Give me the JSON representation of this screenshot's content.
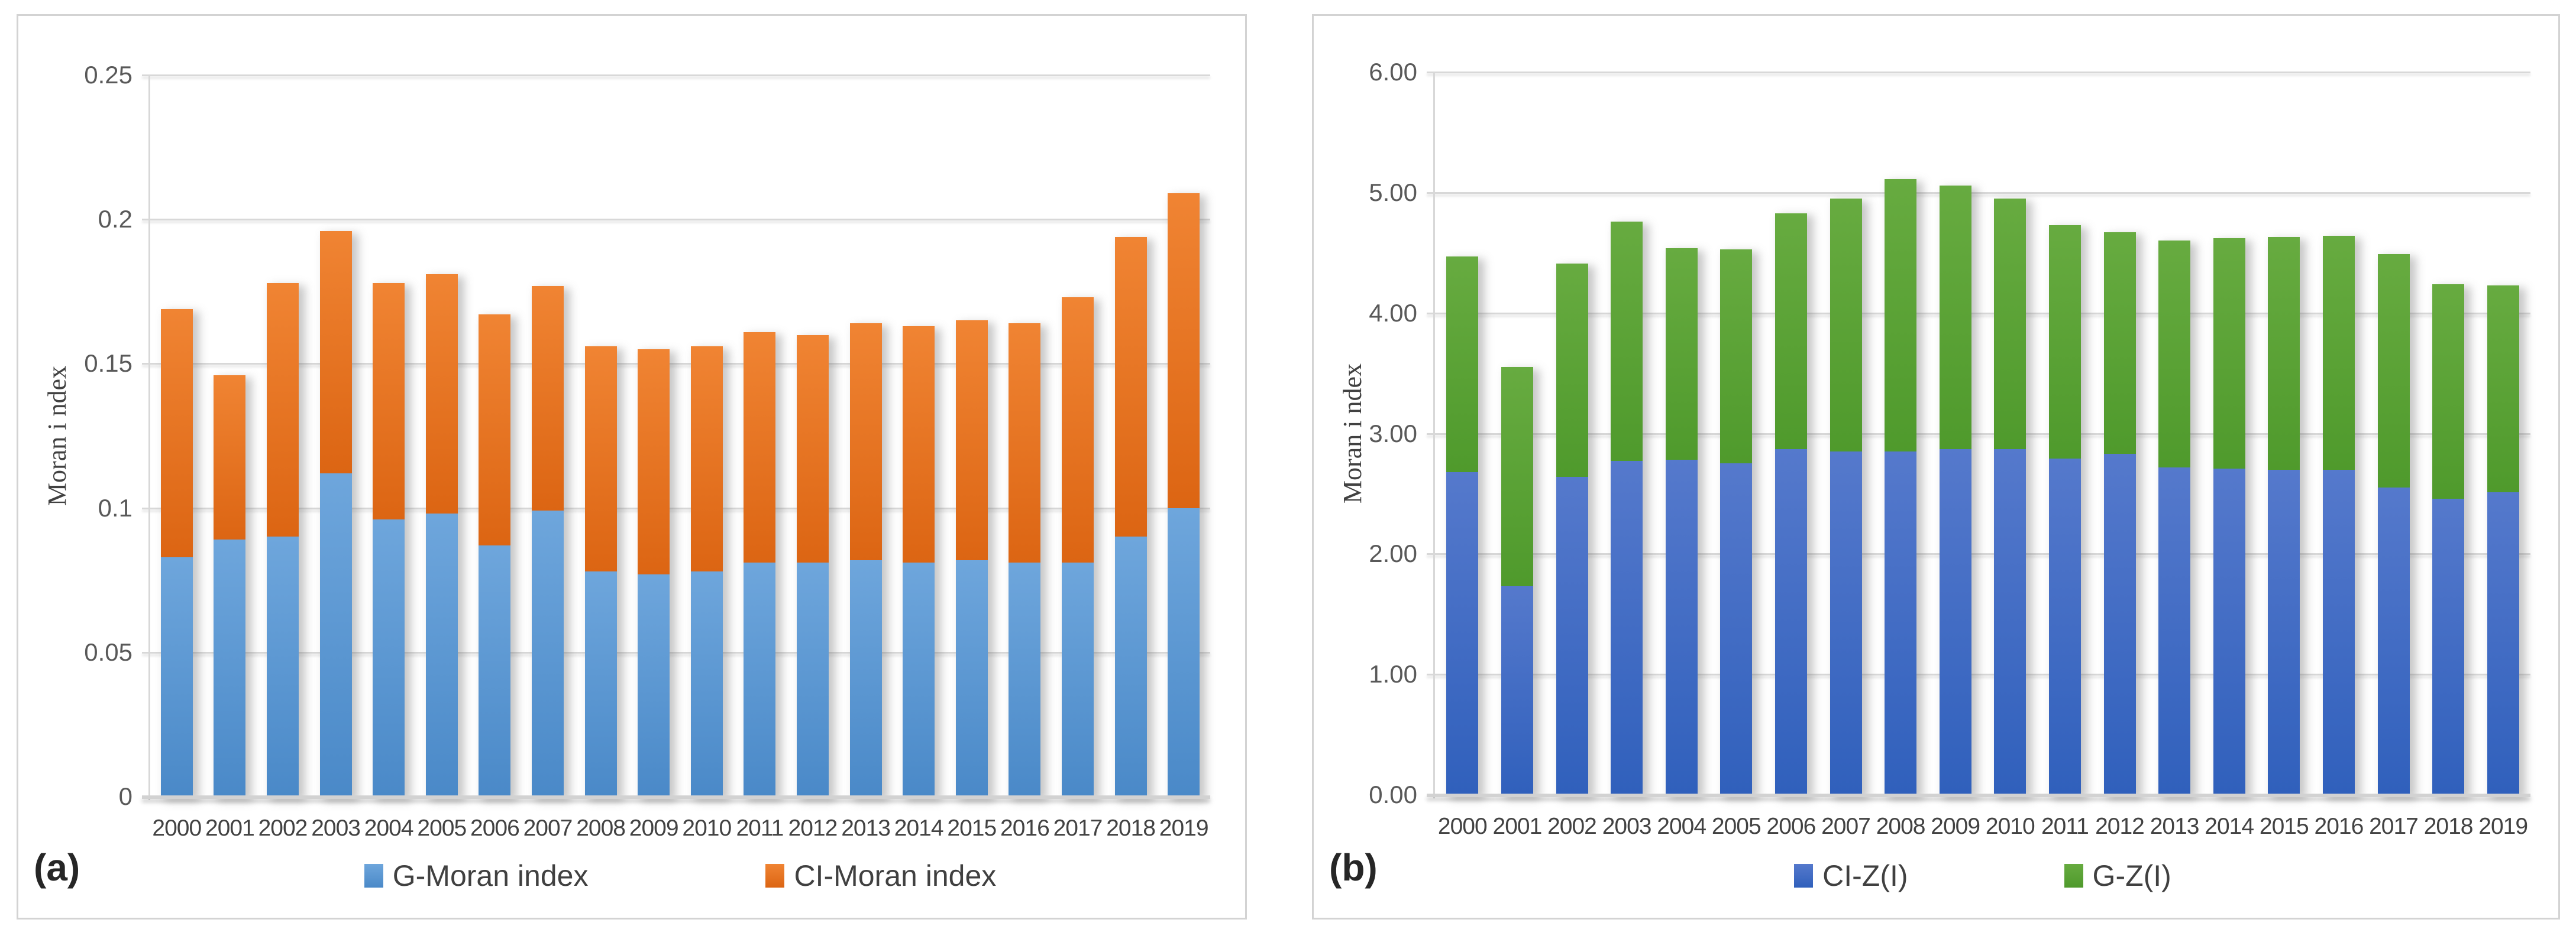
{
  "figure": {
    "background": "#ffffff",
    "panel_border_color": "#d3d3d3",
    "gridline_color": "#d8d8d8",
    "tick_label_color": "#595959",
    "year_label_color": "#424242",
    "legend_label_color": "#404040"
  },
  "chart_data": [
    {
      "type": "bar",
      "stacked": true,
      "panel_label": "(a)",
      "ylabel": "Moran i ndex",
      "ylim": [
        0,
        0.25
      ],
      "ytick_step": 0.05,
      "ytick_labels": [
        "0",
        "0.05",
        "0.1",
        "0.15",
        "0.2",
        "0.25"
      ],
      "grid": true,
      "legend_position": "bottom",
      "categories": [
        "2000",
        "2001",
        "2002",
        "2003",
        "2004",
        "2005",
        "2006",
        "2007",
        "2008",
        "2009",
        "2010",
        "2011",
        "2012",
        "2013",
        "2014",
        "2015",
        "2016",
        "2017",
        "2018",
        "2019"
      ],
      "series": [
        {
          "name": "G-Moran index",
          "legend_color": "#5B9BD5",
          "gradient_top": "#6EA6DC",
          "gradient_bottom": "#4A89C8",
          "values": [
            0.083,
            0.089,
            0.09,
            0.112,
            0.096,
            0.098,
            0.087,
            0.099,
            0.078,
            0.077,
            0.078,
            0.081,
            0.081,
            0.082,
            0.081,
            0.082,
            0.081,
            0.081,
            0.09,
            0.1
          ]
        },
        {
          "name": "CI-Moran index",
          "legend_color": "#ED7D31",
          "gradient_top": "#F08433",
          "gradient_bottom": "#DC6513",
          "values": [
            0.086,
            0.057,
            0.088,
            0.084,
            0.082,
            0.083,
            0.08,
            0.078,
            0.078,
            0.078,
            0.078,
            0.08,
            0.079,
            0.082,
            0.082,
            0.083,
            0.083,
            0.092,
            0.104,
            0.109
          ]
        }
      ],
      "totals": [
        0.169,
        0.146,
        0.178,
        0.196,
        0.178,
        0.181,
        0.167,
        0.177,
        0.156,
        0.155,
        0.156,
        0.161,
        0.16,
        0.164,
        0.163,
        0.165,
        0.164,
        0.173,
        0.194,
        0.209
      ]
    },
    {
      "type": "bar",
      "stacked": true,
      "panel_label": "(b)",
      "ylabel": "Moran i ndex",
      "ylim": [
        0,
        6
      ],
      "ytick_step": 1,
      "ytick_labels": [
        "0.00",
        "1.00",
        "2.00",
        "3.00",
        "4.00",
        "5.00",
        "6.00"
      ],
      "grid": true,
      "legend_position": "bottom",
      "categories": [
        "2000",
        "2001",
        "2002",
        "2003",
        "2004",
        "2005",
        "2006",
        "2007",
        "2008",
        "2009",
        "2010",
        "2011",
        "2012",
        "2013",
        "2014",
        "2015",
        "2016",
        "2017",
        "2018",
        "2019"
      ],
      "series": [
        {
          "name": "CI-Z(I)",
          "legend_color": "#4472C4",
          "gradient_top": "#5579CC",
          "gradient_bottom": "#3060BC",
          "values": [
            2.68,
            1.73,
            2.64,
            2.77,
            2.78,
            2.75,
            2.87,
            2.85,
            2.85,
            2.87,
            2.87,
            2.79,
            2.83,
            2.72,
            2.71,
            2.7,
            2.7,
            2.55,
            2.46,
            2.51
          ]
        },
        {
          "name": "G-Z(I)",
          "legend_color": "#5BA033",
          "gradient_top": "#67AB40",
          "gradient_bottom": "#4F9A2C",
          "values": [
            1.79,
            1.82,
            1.77,
            1.99,
            1.76,
            1.78,
            1.96,
            2.1,
            2.26,
            2.19,
            2.08,
            1.94,
            1.84,
            1.88,
            1.91,
            1.93,
            1.94,
            1.94,
            1.78,
            1.72
          ]
        }
      ],
      "totals": [
        4.47,
        3.55,
        4.41,
        4.76,
        4.54,
        4.53,
        4.83,
        4.95,
        5.11,
        5.06,
        4.95,
        4.73,
        4.67,
        4.6,
        4.62,
        4.63,
        4.64,
        4.49,
        4.24,
        4.23
      ]
    }
  ]
}
